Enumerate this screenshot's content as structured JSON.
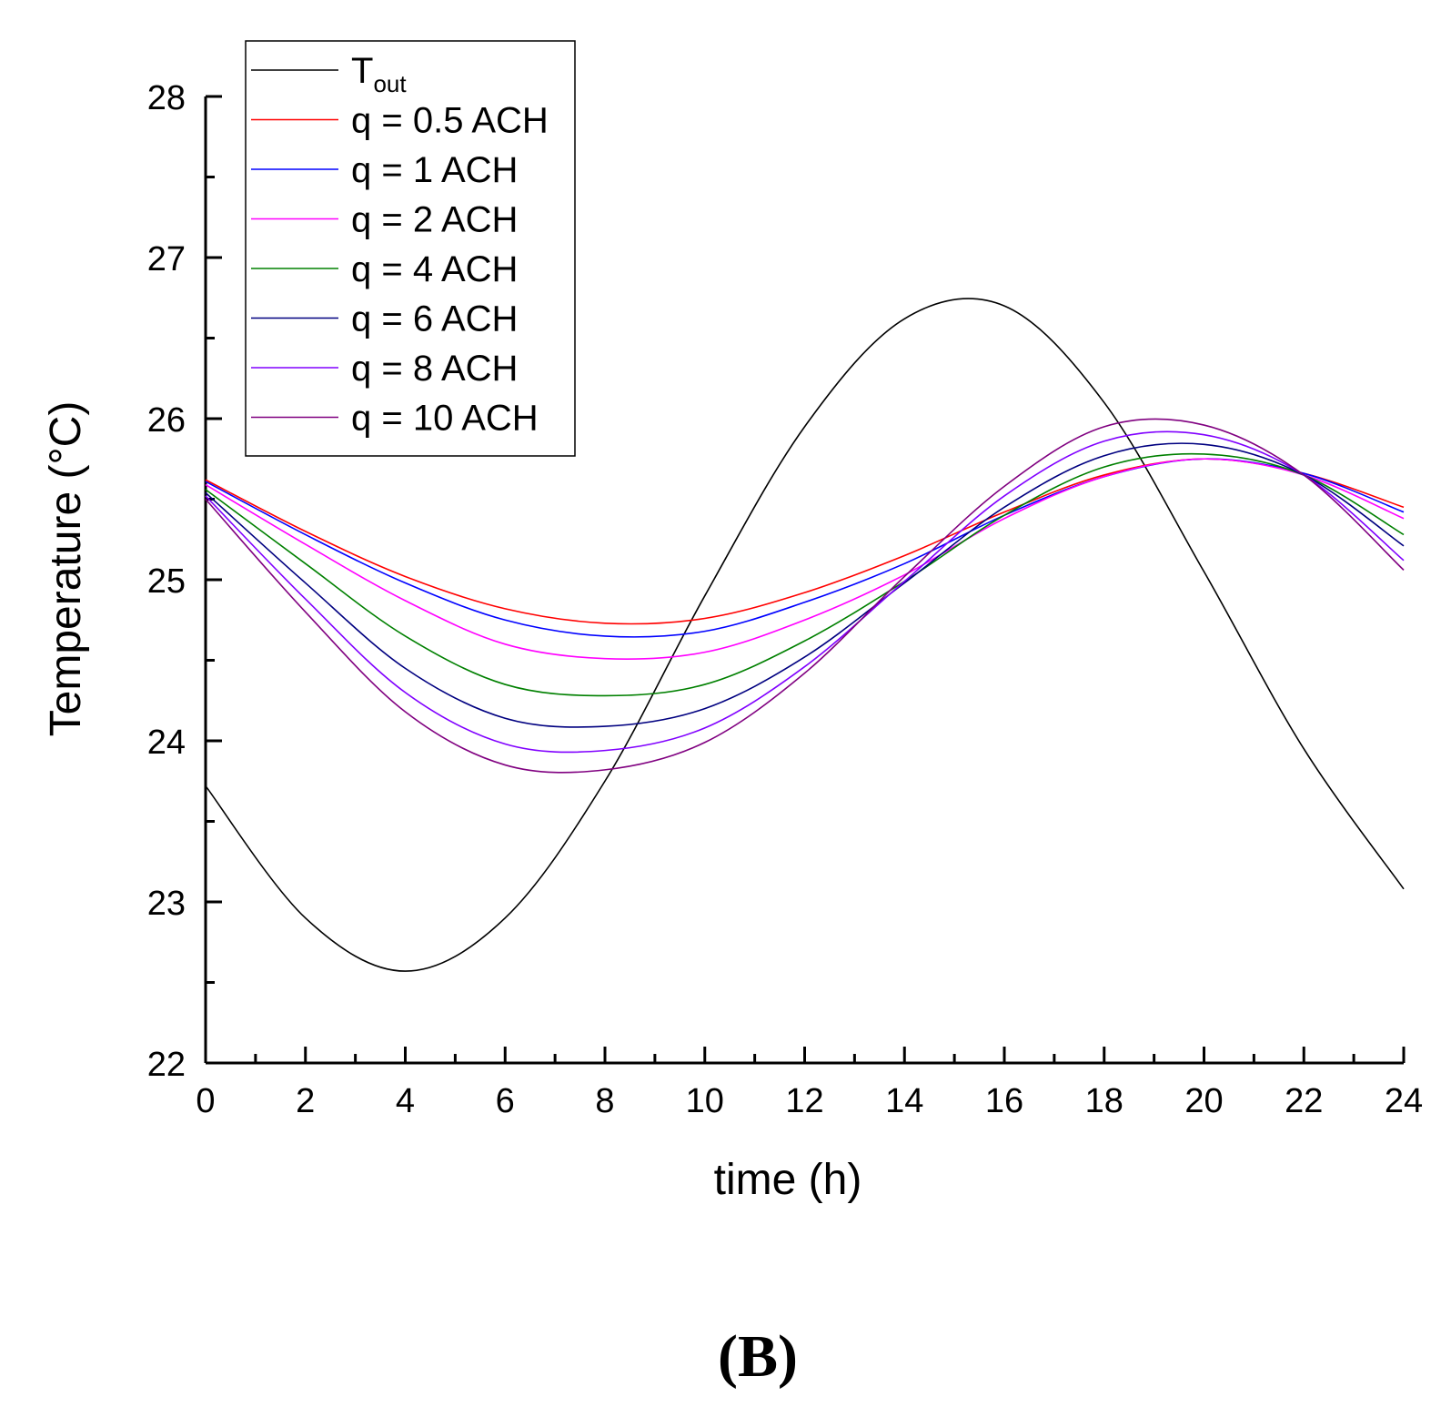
{
  "panel_label": "(B)",
  "chart_data": {
    "type": "line",
    "title": "",
    "xlabel": "time (h)",
    "ylabel": "Temperature (°C)",
    "xlim": [
      0,
      24
    ],
    "ylim": [
      22,
      28
    ],
    "x_major_ticks": [
      0,
      2,
      4,
      6,
      8,
      10,
      12,
      14,
      16,
      18,
      20,
      22,
      24
    ],
    "x_tick_labels": [
      "0",
      "2",
      "4",
      "6",
      "8",
      "10",
      "12",
      "14",
      "16",
      "18",
      "20",
      "22",
      "24"
    ],
    "y_major_ticks": [
      22,
      23,
      24,
      25,
      26,
      27,
      28
    ],
    "y_tick_labels": [
      "22",
      "23",
      "24",
      "25",
      "26",
      "27",
      "28"
    ],
    "grid": false,
    "legend_position": "top-left",
    "x": [
      0,
      2,
      4,
      6,
      8,
      10,
      12,
      14,
      16,
      18,
      20,
      22,
      24
    ],
    "series": [
      {
        "name": "T",
        "name_subscript": "out",
        "color": "#000000",
        "values": [
          23.72,
          22.9,
          22.57,
          22.9,
          23.75,
          24.9,
          25.95,
          26.62,
          26.7,
          26.1,
          25.05,
          23.95,
          23.08
        ]
      },
      {
        "name": "q = 0.5 ACH",
        "color": "#ff0000",
        "values": [
          25.62,
          25.3,
          25.02,
          24.82,
          24.73,
          24.76,
          24.92,
          25.15,
          25.42,
          25.65,
          25.75,
          25.66,
          25.45
        ]
      },
      {
        "name": "q = 1 ACH",
        "color": "#0000ff",
        "values": [
          25.61,
          25.28,
          24.98,
          24.75,
          24.65,
          24.68,
          24.86,
          25.1,
          25.4,
          25.64,
          25.75,
          25.66,
          25.42
        ]
      },
      {
        "name": "q = 2 ACH",
        "color": "#ff00ff",
        "values": [
          25.59,
          25.22,
          24.87,
          24.6,
          24.51,
          24.55,
          24.75,
          25.03,
          25.38,
          25.64,
          25.75,
          25.65,
          25.38
        ]
      },
      {
        "name": "q = 4 ACH",
        "color": "#008000",
        "values": [
          25.56,
          25.1,
          24.65,
          24.35,
          24.28,
          24.35,
          24.62,
          24.99,
          25.4,
          25.7,
          25.78,
          25.65,
          25.28
        ]
      },
      {
        "name": "q = 6 ACH",
        "color": "#000080",
        "values": [
          25.54,
          24.98,
          24.45,
          24.14,
          24.09,
          24.2,
          24.52,
          24.98,
          25.45,
          25.77,
          25.84,
          25.65,
          25.21
        ]
      },
      {
        "name": "q = 8 ACH",
        "color": "#8000ff",
        "values": [
          25.52,
          24.88,
          24.3,
          23.98,
          23.94,
          24.08,
          24.46,
          24.99,
          25.52,
          25.86,
          25.9,
          25.65,
          25.12
        ]
      },
      {
        "name": "q = 10 ACH",
        "color": "#800080",
        "values": [
          25.5,
          24.8,
          24.18,
          23.85,
          23.82,
          23.99,
          24.42,
          25.02,
          25.58,
          25.95,
          25.96,
          25.65,
          25.06
        ]
      }
    ]
  }
}
